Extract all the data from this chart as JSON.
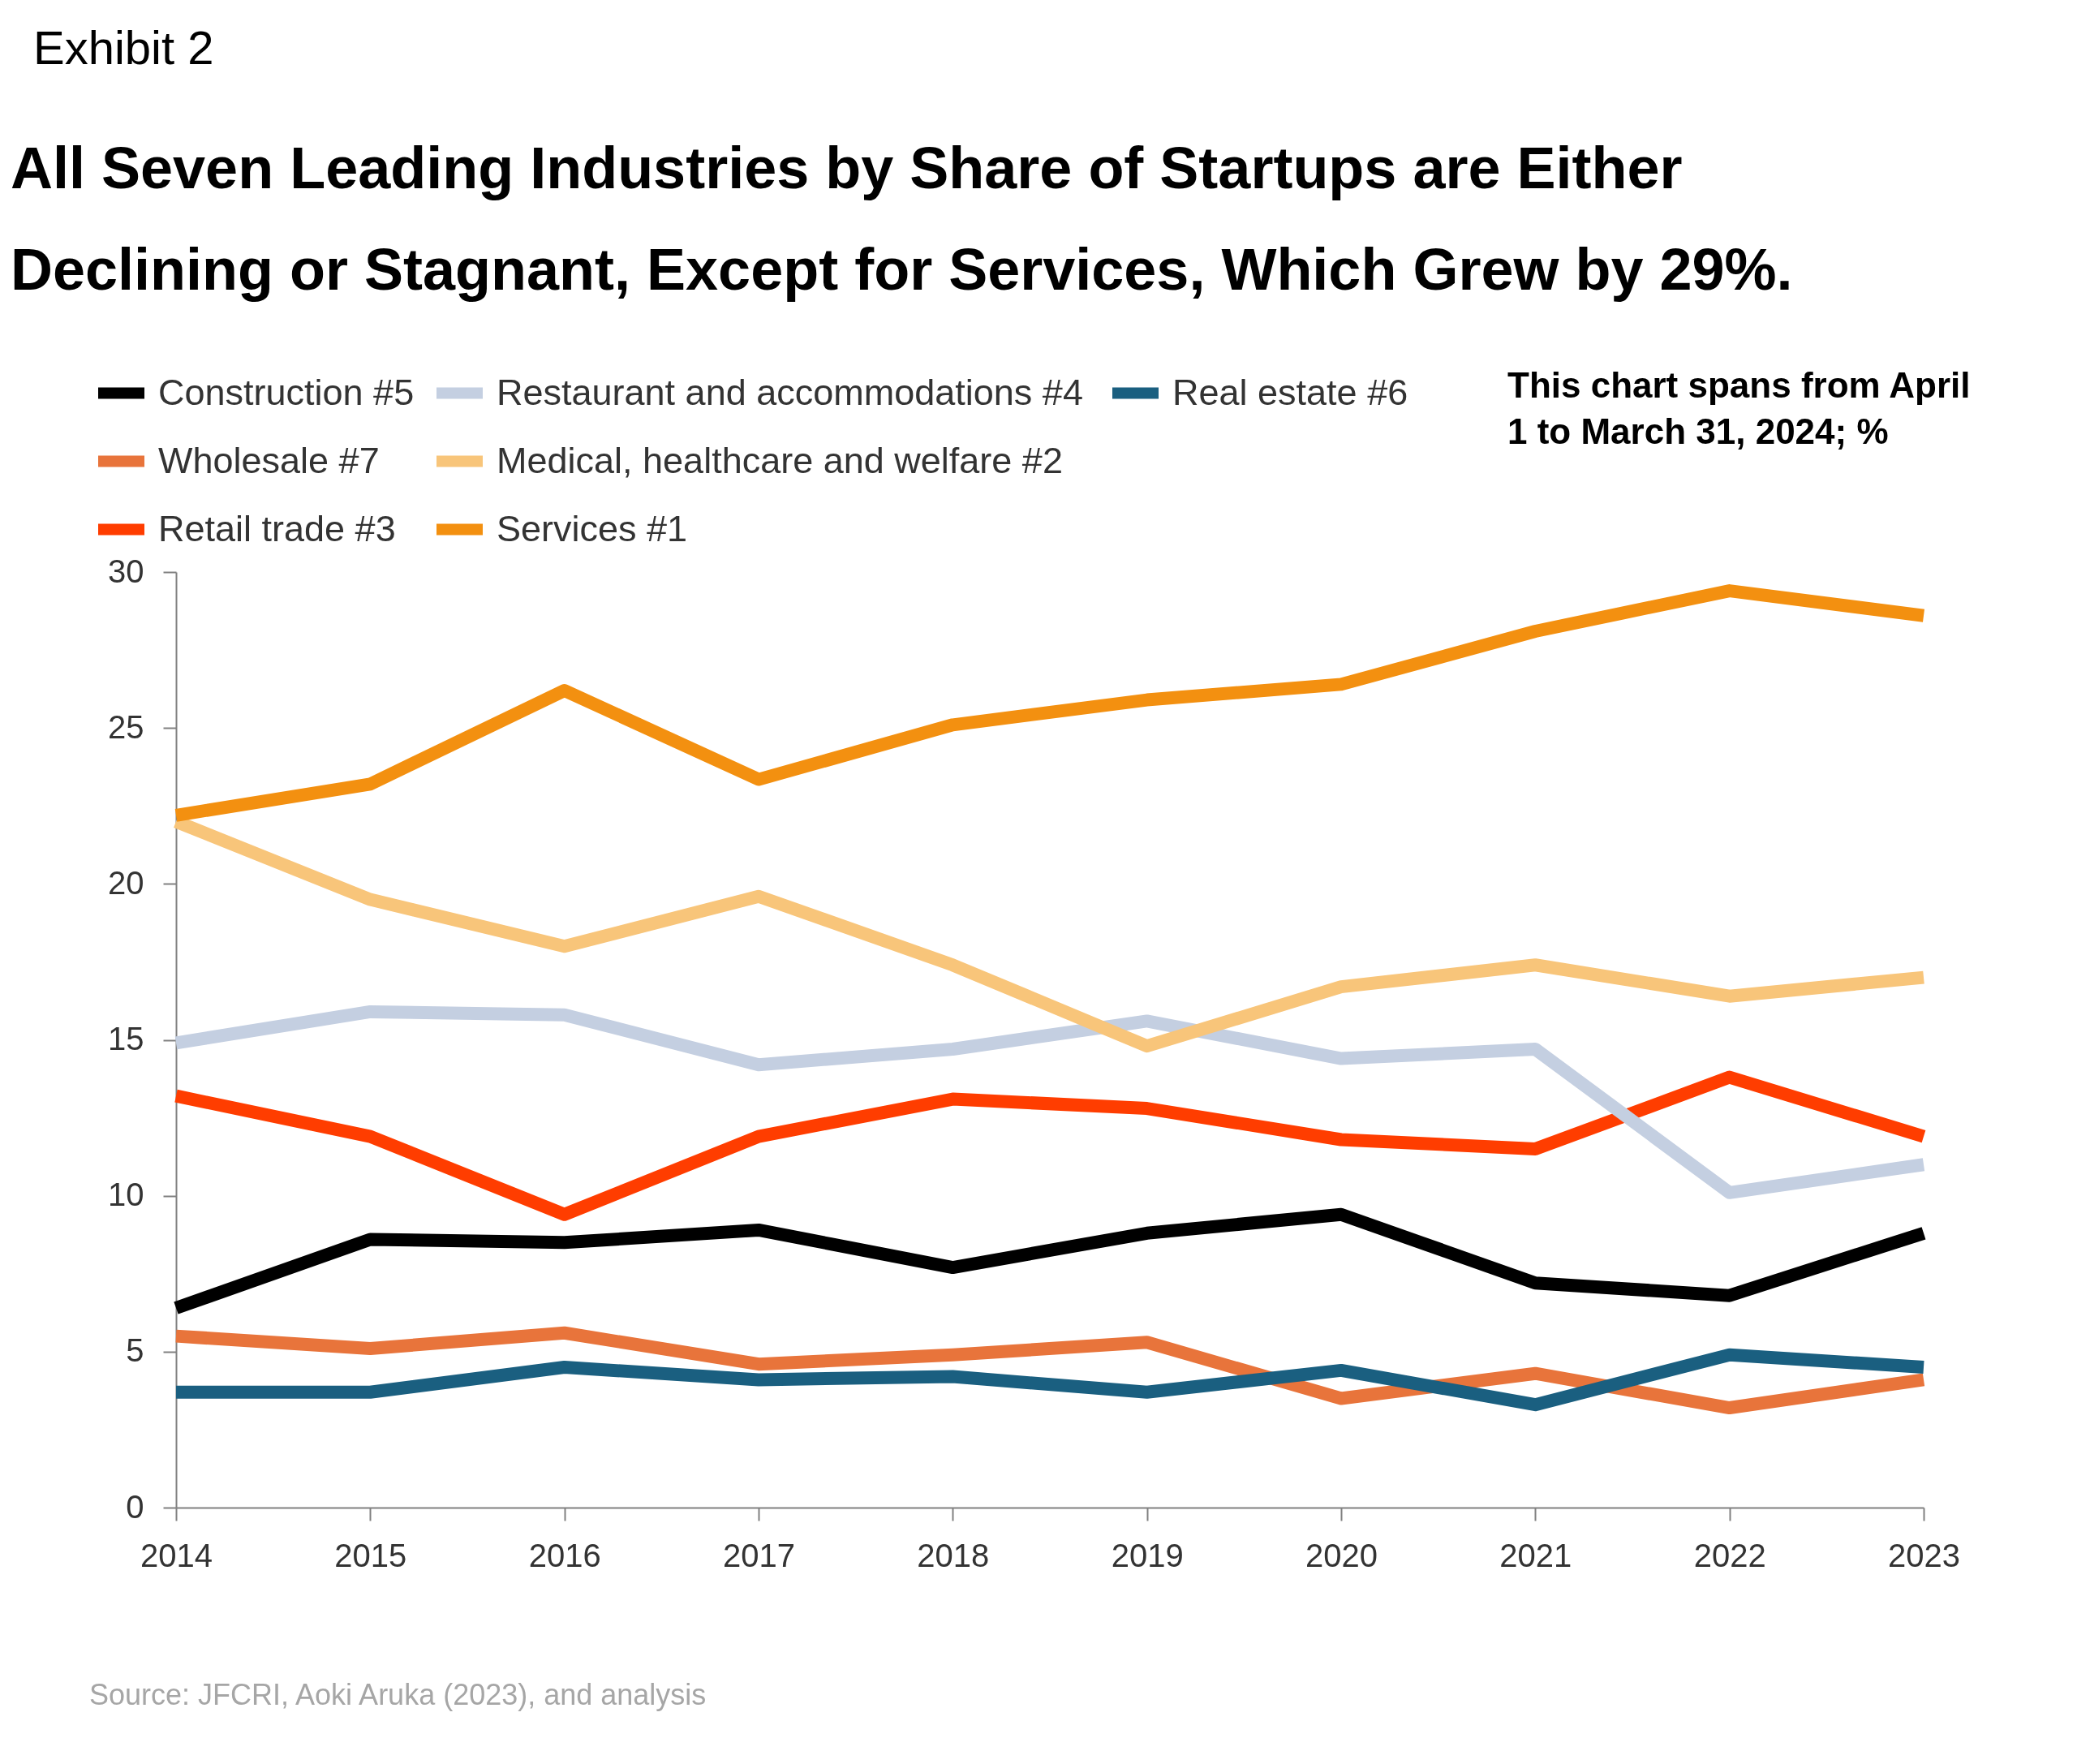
{
  "chart_data": {
    "type": "line",
    "title": "All Seven Leading Industries by Share of Startups are Either Declining or Stagnant, Except for Services, Which Grew by 29%.",
    "annotations": [
      "Exhibit 2",
      "This chart spans from April 1 to March 31, 2024; %",
      "Source: JFCRI, Aoki Aruka (2023), and analysis"
    ],
    "x": [
      2014,
      2015,
      2016,
      2017,
      2018,
      2019,
      2020,
      2021,
      2022,
      2023
    ],
    "xlim": [
      2014,
      2023
    ],
    "xticks": [
      2014,
      2015,
      2016,
      2017,
      2018,
      2019,
      2020,
      2021,
      2022,
      2023
    ],
    "ylim": [
      0,
      30
    ],
    "yticks": [
      0,
      5,
      10,
      15,
      20,
      25,
      30
    ],
    "legend": "top left",
    "series": [
      {
        "name": "Construction #5",
        "color": "#000000",
        "values": [
          6.4,
          8.6,
          8.5,
          8.9,
          7.7,
          8.8,
          9.4,
          7.2,
          6.8,
          8.8
        ]
      },
      {
        "name": "Wholesale #7",
        "color": "#e8743b",
        "values": [
          5.5,
          5.1,
          5.6,
          4.6,
          4.9,
          5.3,
          3.5,
          4.3,
          3.2,
          4.1
        ]
      },
      {
        "name": "Retail trade #3",
        "color": "#ff3d00",
        "values": [
          13.2,
          11.9,
          9.4,
          11.9,
          13.1,
          12.8,
          11.8,
          11.5,
          13.8,
          11.9
        ]
      },
      {
        "name": "Restaurant and accommodations #4",
        "color": "#c4cfe1",
        "values": [
          14.9,
          15.9,
          15.8,
          14.2,
          14.7,
          15.6,
          14.4,
          14.7,
          10.1,
          11.0
        ]
      },
      {
        "name": "Medical, healthcare and welfare #2",
        "color": "#f8c57a",
        "values": [
          22.0,
          19.5,
          18.0,
          19.6,
          17.4,
          14.8,
          16.7,
          17.4,
          16.4,
          17.0
        ]
      },
      {
        "name": "Services #1",
        "color": "#f39010",
        "values": [
          22.2,
          23.2,
          26.2,
          23.35,
          25.1,
          25.9,
          26.4,
          28.1,
          29.4,
          28.6
        ]
      },
      {
        "name": "Real estate #6",
        "color": "#1a5f80",
        "values": [
          3.7,
          3.7,
          4.5,
          4.1,
          4.2,
          3.7,
          4.4,
          3.3,
          4.9,
          4.5
        ]
      }
    ]
  }
}
